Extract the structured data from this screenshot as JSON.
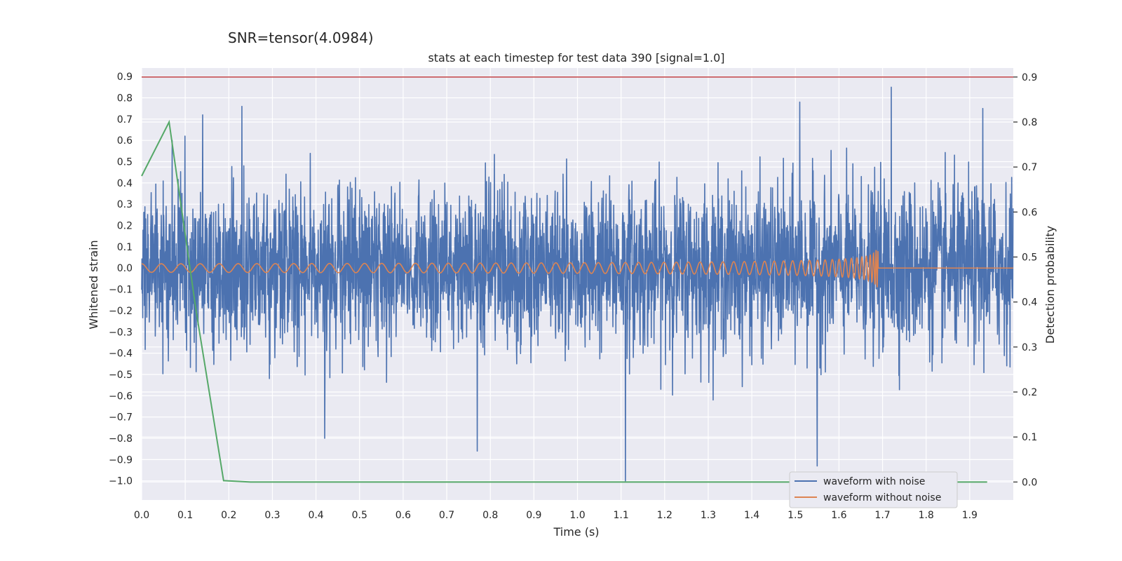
{
  "chart_data": {
    "type": "line",
    "suptitle": "SNR=tensor(4.0984)",
    "title": "stats at each timestep for test data 390 [signal=1.0]",
    "xlabel": "Time (s)",
    "ylabel": "Whitened strain",
    "y2label": "Detection probability",
    "xlim": [
      0.0,
      2.0
    ],
    "ylim": [
      -1.09,
      0.94
    ],
    "y2lim": [
      -0.04,
      0.92
    ],
    "x_ticks": [
      0.0,
      0.1,
      0.2,
      0.3,
      0.4,
      0.5,
      0.6,
      0.7,
      0.8,
      0.9,
      1.0,
      1.1,
      1.2,
      1.3,
      1.4,
      1.5,
      1.6,
      1.7,
      1.8,
      1.9
    ],
    "x_tick_labels": [
      "0.0",
      "0.1",
      "0.2",
      "0.3",
      "0.4",
      "0.5",
      "0.6",
      "0.7",
      "0.8",
      "0.9",
      "1.0",
      "1.1",
      "1.2",
      "1.3",
      "1.4",
      "1.5",
      "1.6",
      "1.7",
      "1.8",
      "1.9"
    ],
    "y_ticks": [
      0.9,
      0.8,
      0.7,
      0.6,
      0.5,
      0.4,
      0.3,
      0.2,
      0.1,
      0.0,
      -0.1,
      -0.2,
      -0.3,
      -0.4,
      -0.5,
      -0.6,
      -0.7,
      -0.8,
      -0.9,
      -1.0
    ],
    "y_tick_labels": [
      "0.9",
      "0.8",
      "0.7",
      "0.6",
      "0.5",
      "0.4",
      "0.3",
      "0.2",
      "0.1",
      "0.0",
      "−0.1",
      "−0.2",
      "−0.3",
      "−0.4",
      "−0.5",
      "−0.6",
      "−0.7",
      "−0.8",
      "−0.9",
      "−1.0"
    ],
    "y2_ticks": [
      0.9,
      0.8,
      0.7,
      0.6,
      0.5,
      0.4,
      0.3,
      0.2,
      0.1,
      0.0
    ],
    "y2_tick_labels": [
      "0.9",
      "0.8",
      "0.7",
      "0.6",
      "0.5",
      "0.4",
      "0.3",
      "0.2",
      "0.1",
      "0.0"
    ],
    "grid": true,
    "legend_position": "bottom-right",
    "series": [
      {
        "name": "waveform with noise",
        "axis": "left",
        "color": "#4c72b0",
        "description": "dense gaussian-like noise spanning roughly -1.0 to 0.85, sampled across 0.0–2.0 s",
        "approx_range": [
          -1.0,
          0.85
        ],
        "notable_peaks": [
          {
            "x": 0.07,
            "y": 0.6
          },
          {
            "x": 0.14,
            "y": 0.72
          },
          {
            "x": 0.23,
            "y": 0.76
          },
          {
            "x": 0.42,
            "y": -0.8
          },
          {
            "x": 0.77,
            "y": -0.86
          },
          {
            "x": 1.11,
            "y": -1.0
          },
          {
            "x": 1.55,
            "y": -0.93
          },
          {
            "x": 1.51,
            "y": 0.78
          },
          {
            "x": 1.72,
            "y": 0.85
          },
          {
            "x": 1.93,
            "y": 0.75
          }
        ]
      },
      {
        "name": "waveform without noise",
        "axis": "left",
        "color": "#dd8452",
        "description": "chirp: small oscillation amplitude ~0.02 rising to ~0.12 with increasing frequency, merging near 1.69 s, then flat at 0.0",
        "merger_time": 1.69,
        "start_amplitude": 0.02,
        "peak_amplitude": 0.12
      },
      {
        "name": "detection probability",
        "axis": "right",
        "color": "#55a868",
        "x": [
          0.0,
          0.063,
          0.125,
          0.188,
          0.25,
          1.94
        ],
        "y": [
          0.68,
          0.8,
          0.38,
          0.003,
          0.0,
          0.0
        ]
      }
    ],
    "threshold_line": {
      "axis": "right",
      "value": 0.9,
      "color": "#c44e52"
    }
  }
}
